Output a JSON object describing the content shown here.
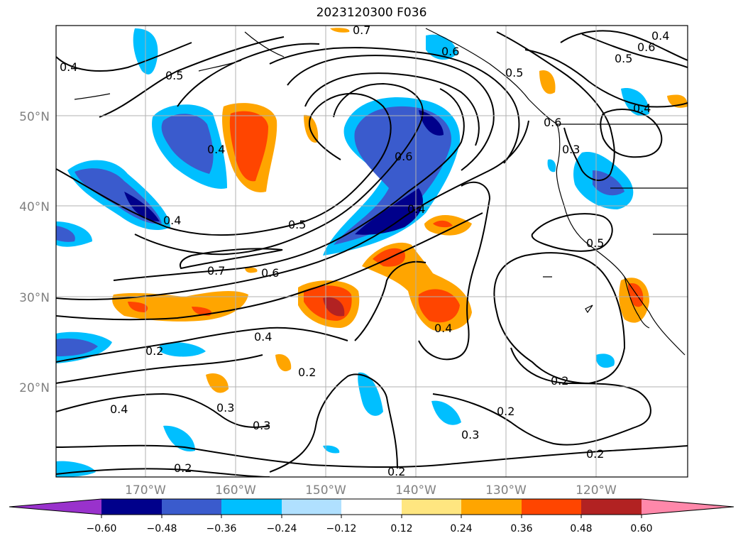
{
  "title": "2023120300 F036",
  "map": {
    "lat_labels": [
      "50°N",
      "40°N",
      "30°N",
      "20°N"
    ],
    "lon_labels": [
      "170°W",
      "160°W",
      "150°W",
      "140°W",
      "130°W",
      "120°W"
    ],
    "contour_labels": [
      "0.7",
      "0.6",
      "0.5",
      "0.4",
      "0.5",
      "0.6",
      "0.4",
      "0.4",
      "0.5",
      "0.7",
      "0.6",
      "0.6",
      "0.4",
      "0.4",
      "0.5",
      "0.3",
      "0.4",
      "0.4",
      "0.2",
      "0.2",
      "0.3",
      "0.3",
      "0.2",
      "0.4",
      "0.3",
      "0.2",
      "0.2",
      "0.2",
      "0.2",
      "0.5",
      "0.6",
      "0.4"
    ]
  },
  "colorbar": {
    "tick_labels": [
      "−0.60",
      "−0.48",
      "−0.36",
      "−0.24",
      "−0.12",
      "0.12",
      "0.24",
      "0.36",
      "0.48",
      "0.60"
    ],
    "colors": [
      "#9932cc",
      "#00008b",
      "#3a5bcd",
      "#00bfff",
      "#b0e0ff",
      "#ffffff",
      "#ffe680",
      "#ffa500",
      "#ff4500",
      "#b22222",
      "#ff88aa"
    ]
  }
}
